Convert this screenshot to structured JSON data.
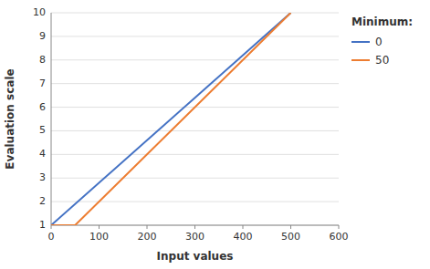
{
  "chart_data": {
    "type": "line",
    "xlabel": "Input values",
    "ylabel": "Evaluation scale",
    "xlim": [
      0,
      600
    ],
    "ylim": [
      1,
      10
    ],
    "xticks": [
      0,
      100,
      200,
      300,
      400,
      500,
      600
    ],
    "yticks": [
      1,
      2,
      3,
      4,
      5,
      6,
      7,
      8,
      9,
      10
    ],
    "grid": true,
    "legend": "right",
    "legend_title": "Minimum:",
    "series": [
      {
        "name": "0",
        "color": "#4472C4",
        "x": [
          0,
          500
        ],
        "values": [
          1,
          10
        ]
      },
      {
        "name": "50",
        "color": "#ED7D31",
        "x": [
          0,
          50,
          500
        ],
        "values": [
          1,
          1,
          10
        ]
      }
    ]
  }
}
